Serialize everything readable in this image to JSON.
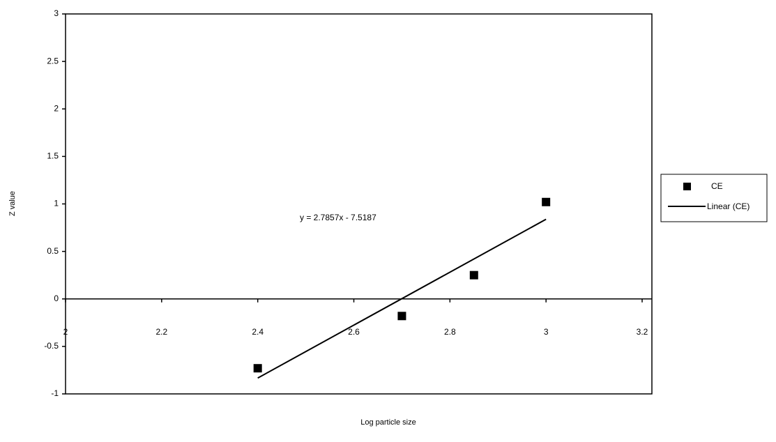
{
  "chart_data": {
    "type": "scatter",
    "x_label": "Log particle size",
    "y_label": "Z value",
    "xlim": [
      2,
      3.2
    ],
    "xticks": [
      2,
      2.2,
      2.4,
      2.6,
      2.8,
      3,
      3.2
    ],
    "ylim": [
      -1,
      3
    ],
    "yticks": [
      -1,
      -0.5,
      0,
      0.5,
      1,
      1.5,
      2,
      2.5,
      3
    ],
    "series": [
      {
        "name": "CE",
        "color": "#000000",
        "x": [
          2.4,
          2.7,
          2.85,
          3
        ],
        "values": [
          -0.73,
          -0.18,
          0.25,
          1.02
        ]
      }
    ],
    "trendline": {
      "name": "Linear (CE)",
      "label": "y = 2.7857x - 7.5187",
      "slope": 2.7857,
      "intercept": -7.5187,
      "x": [
        2.4,
        3
      ],
      "color": "#000000"
    },
    "legend": "right"
  }
}
